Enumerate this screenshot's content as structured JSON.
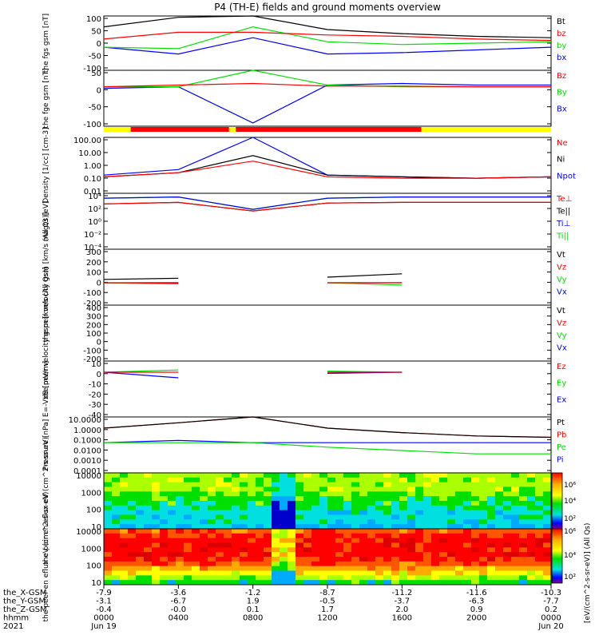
{
  "title": "P4 (TH-E) fields and ground moments overview",
  "colors": {
    "black": "#000000",
    "red": "#ff0000",
    "green": "#00e000",
    "blue": "#0000ff",
    "yellow": "#ffff00"
  },
  "bar_segments": [
    {
      "from": 0,
      "to": 0.06,
      "color": "#ffff00"
    },
    {
      "from": 0.06,
      "to": 0.28,
      "color": "#ff0000"
    },
    {
      "from": 0.28,
      "to": 0.295,
      "color": "#ffff00"
    },
    {
      "from": 0.295,
      "to": 0.71,
      "color": "#ff0000"
    },
    {
      "from": 0.71,
      "to": 1.0,
      "color": "#ffff00"
    }
  ],
  "colorbar": {
    "label": "[eV/(cm^2-s-sr-eV)] (All Qs)",
    "ticks_top": [
      "10⁶",
      "10⁴",
      "10²"
    ],
    "ticks_bottom": [
      "10⁶",
      "10⁴",
      "10²"
    ]
  },
  "footer": {
    "row_labels": [
      "the_X-GSM",
      "the_Y-GSM",
      "the_Z-GSM",
      "hhmm",
      "2021"
    ],
    "columns": [
      [
        "-7.9",
        "-3.1",
        "-0.4",
        "0000",
        "Jun 19"
      ],
      [
        "-3.6",
        "-6.7",
        "-0.0",
        "0400",
        ""
      ],
      [
        "-1.2",
        "1.9",
        "0.1",
        "0800",
        ""
      ],
      [
        "-8.7",
        "-0.5",
        "1.7",
        "1200",
        ""
      ],
      [
        "-11.2",
        "-3.7",
        "2.0",
        "1600",
        ""
      ],
      [
        "-11.6",
        "-6.3",
        "0.9",
        "2000",
        ""
      ],
      [
        "-10.3",
        "-7.7",
        "0.2",
        "0000",
        "Jun 20"
      ]
    ]
  },
  "chart_data": [
    {
      "type": "line",
      "ylabel": "the fgs gsm [nT]",
      "ylim": [
        -100,
        100
      ],
      "yticks": [
        "100",
        "50",
        "0",
        "-50",
        "-100"
      ],
      "legend": [
        "Bt",
        "bz",
        "by",
        "bx"
      ],
      "legend_colors": [
        "#000000",
        "#ff0000",
        "#00e000",
        "#0000ff"
      ],
      "x": [
        "0000",
        "0400",
        "0800",
        "1200",
        "1600",
        "2000",
        "0000"
      ],
      "series": [
        {
          "name": "Bt",
          "values": [
            60,
            95,
            100,
            50,
            35,
            25,
            20
          ]
        },
        {
          "name": "bz",
          "values": [
            15,
            40,
            40,
            30,
            25,
            15,
            10
          ]
        },
        {
          "name": "by",
          "values": [
            -15,
            -20,
            60,
            5,
            -5,
            0,
            5
          ]
        },
        {
          "name": "bx",
          "values": [
            -15,
            -40,
            20,
            -40,
            -35,
            -25,
            -15
          ]
        }
      ]
    },
    {
      "type": "line",
      "ylabel": "the fge gsm [nT]",
      "ylim": [
        -120,
        50
      ],
      "yticks": [
        "50",
        "0",
        "-50",
        "-100"
      ],
      "legend": [
        "Bz",
        "By",
        "Bx"
      ],
      "legend_colors": [
        "#ff0000",
        "#00e000",
        "#0000ff"
      ],
      "x": [
        "0000",
        "0400",
        "0800",
        "1200",
        "1600",
        "2000",
        "0000"
      ],
      "series": [
        {
          "name": "Bz",
          "values": [
            0,
            5,
            10,
            2,
            2,
            0,
            0
          ]
        },
        {
          "name": "By",
          "values": [
            0,
            0,
            60,
            5,
            0,
            0,
            0
          ]
        },
        {
          "name": "Bx",
          "values": [
            -5,
            0,
            -110,
            5,
            10,
            5,
            5
          ]
        }
      ]
    },
    {
      "type": "line",
      "ylabel": "Density [1/cc] [cm-3]",
      "scale": "log",
      "yticks": [
        "100.00",
        "10.00",
        "1.00",
        "0.10",
        "0.01"
      ],
      "legend": [
        "Ne",
        "Ni",
        "Npot"
      ],
      "legend_colors": [
        "#ff0000",
        "#000000",
        "#0000ff"
      ],
      "x": [
        "0000",
        "0400",
        "0800",
        "1200",
        "1600",
        "2000",
        "0000"
      ],
      "series": [
        {
          "name": "Ne",
          "values": [
            0.15,
            0.3,
            2.0,
            0.15,
            0.12,
            0.12,
            0.15
          ]
        },
        {
          "name": "Ni",
          "values": [
            0.15,
            0.3,
            5.0,
            0.2,
            0.15,
            0.12,
            0.15
          ]
        },
        {
          "name": "Npot",
          "values": [
            0.2,
            0.5,
            100,
            0.2,
            0.15,
            0.12,
            0.15
          ]
        }
      ]
    },
    {
      "type": "line",
      "ylabel": "magt3 [eV]",
      "scale": "log",
      "yticks": [
        "10⁴",
        "10²",
        "10⁰",
        "10⁻²",
        "10⁻⁴"
      ],
      "legend": [
        "Te⊥",
        "Te||",
        "Ti⊥",
        "Ti||"
      ],
      "legend_colors": [
        "#ff0000",
        "#000000",
        "#0000ff",
        "#00e000"
      ],
      "x": [
        "0000",
        "0400",
        "0800",
        "1200",
        "1600",
        "2000",
        "0000"
      ],
      "series": [
        {
          "name": "Te⊥",
          "values": [
            300,
            500,
            30,
            400,
            500,
            500,
            500
          ]
        },
        {
          "name": "Te||",
          "values": [
            300,
            500,
            30,
            400,
            500,
            500,
            500
          ]
        },
        {
          "name": "Ti⊥",
          "values": [
            2000,
            3000,
            50,
            2000,
            3000,
            3000,
            3000
          ]
        },
        {
          "name": "Ti||",
          "values": [
            2000,
            3000,
            50,
            2000,
            3000,
            3000,
            3000
          ]
        }
      ]
    },
    {
      "type": "line",
      "ylabel": "the peir velocity gsm [km/s (All Qs)]",
      "ylim": [
        -200,
        300
      ],
      "yticks": [
        "300",
        "200",
        "100",
        "0",
        "-100",
        "-200"
      ],
      "legend": [
        "Vt",
        "Vz",
        "Vy",
        "Vx"
      ],
      "legend_colors": [
        "#000000",
        "#ff0000",
        "#00e000",
        "#0000ff"
      ],
      "x": [
        "0000",
        "0400",
        "0800",
        "1200",
        "1600",
        "2000",
        "0000"
      ],
      "series": [
        {
          "name": "Vt",
          "values": [
            30,
            40,
            null,
            50,
            80,
            null,
            null
          ]
        },
        {
          "name": "Vz",
          "values": [
            0,
            -5,
            null,
            0,
            0,
            null,
            null
          ]
        },
        {
          "name": "Vy",
          "values": [
            0,
            -10,
            null,
            0,
            -20,
            null,
            null
          ]
        },
        {
          "name": "Vx",
          "values": [
            0,
            0,
            null,
            0,
            0,
            null,
            null
          ]
        }
      ]
    },
    {
      "type": "line",
      "ylabel": "the peer velocity gsm [km/s (All Qs)]",
      "ylim": [
        -200,
        400
      ],
      "yticks": [
        "400",
        "300",
        "200",
        "100",
        "0",
        "-100",
        "-200"
      ],
      "legend": [
        "Vt",
        "Vz",
        "Vy",
        "Vx"
      ],
      "legend_colors": [
        "#000000",
        "#ff0000",
        "#00e000",
        "#0000ff"
      ],
      "x": [],
      "series": []
    },
    {
      "type": "line",
      "ylabel": "E=-VxB [mV/m]",
      "ylim": [
        -40,
        10
      ],
      "yticks": [
        "10",
        "0",
        "-10",
        "-20",
        "-30",
        "-40"
      ],
      "legend": [
        "Ez",
        "Ey",
        "Ex"
      ],
      "legend_colors": [
        "#ff0000",
        "#00e000",
        "#0000ff"
      ],
      "x": [
        "0000",
        "0400",
        "0800",
        "1200",
        "1600",
        "2000",
        "0000"
      ],
      "series": [
        {
          "name": "Ez",
          "values": [
            0,
            0,
            null,
            0,
            0,
            null,
            null
          ]
        },
        {
          "name": "Ey",
          "values": [
            0,
            2,
            null,
            1,
            0,
            null,
            null
          ]
        },
        {
          "name": "Ex",
          "values": [
            0,
            -5,
            null,
            -1,
            0,
            null,
            null
          ]
        }
      ]
    },
    {
      "type": "line",
      "ylabel": "Pressure [nPa]",
      "scale": "log",
      "yticks": [
        "10.0000",
        "1.0000",
        "0.1000",
        "0.0100",
        "0.0010",
        "0.0001"
      ],
      "legend": [
        "Pt",
        "Pb",
        "Pe",
        "Pi"
      ],
      "legend_colors": [
        "#000000",
        "#ff0000",
        "#00e000",
        "#0000ff"
      ],
      "x": [
        "0000",
        "0400",
        "0800",
        "1200",
        "1600",
        "2000",
        "0000"
      ],
      "series": [
        {
          "name": "Pt",
          "values": [
            1.0,
            3.0,
            10,
            1.0,
            0.4,
            0.2,
            0.15
          ]
        },
        {
          "name": "Pb",
          "values": [
            1.0,
            3.0,
            10,
            1.0,
            0.4,
            0.2,
            0.15
          ]
        },
        {
          "name": "Pe",
          "values": [
            0.05,
            0.05,
            0.05,
            0.02,
            0.01,
            0.005,
            0.005
          ]
        },
        {
          "name": "Pi",
          "values": [
            0.05,
            0.08,
            0.05,
            0.05,
            0.05,
            0.05,
            0.05
          ]
        }
      ]
    },
    {
      "type": "heatmap",
      "ylabel": "the peir en eflux eV (cm^2-s-sr-eV)",
      "yticks": [
        "10000",
        "1000",
        "100",
        "10"
      ],
      "scale": "log"
    },
    {
      "type": "heatmap",
      "ylabel": "the peer en eflux eV (cm^2-s-sr-eV)",
      "yticks": [
        "10000",
        "1000",
        "100",
        "10"
      ],
      "scale": "log"
    }
  ]
}
